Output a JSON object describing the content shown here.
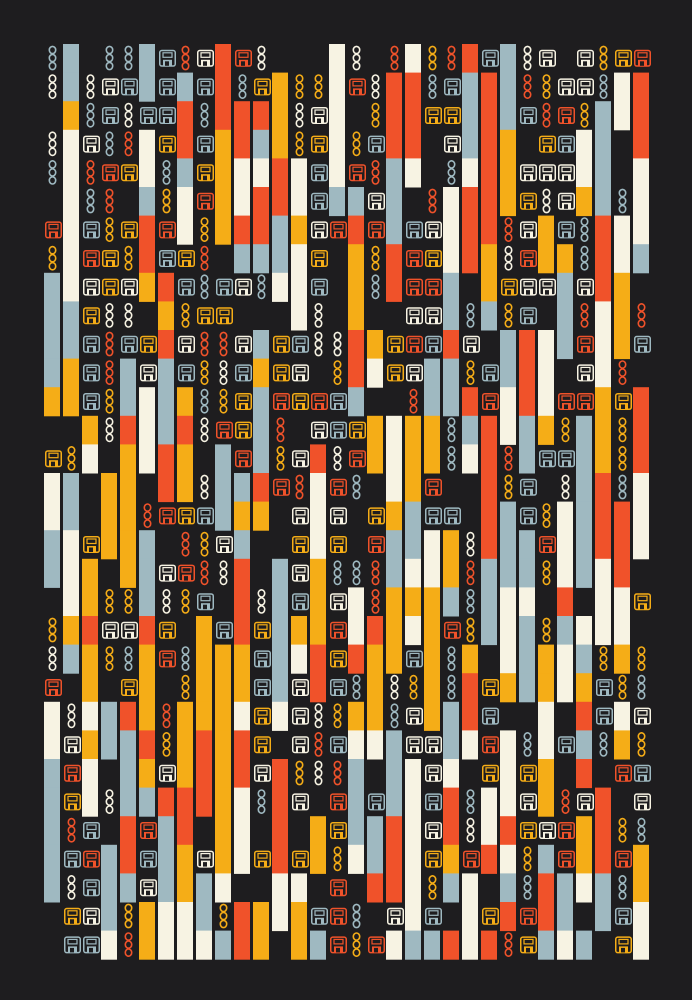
{
  "artwork": {
    "background": "#1e1d1f",
    "palette": {
      "orange": "#f0522a",
      "blue": "#9fb9c1",
      "cream": "#f7f3e3",
      "yellow": "#f5ad17"
    },
    "glyph_types": [
      "floppy-disk-icon",
      "chain-link-icon",
      "color-bar"
    ]
  }
}
